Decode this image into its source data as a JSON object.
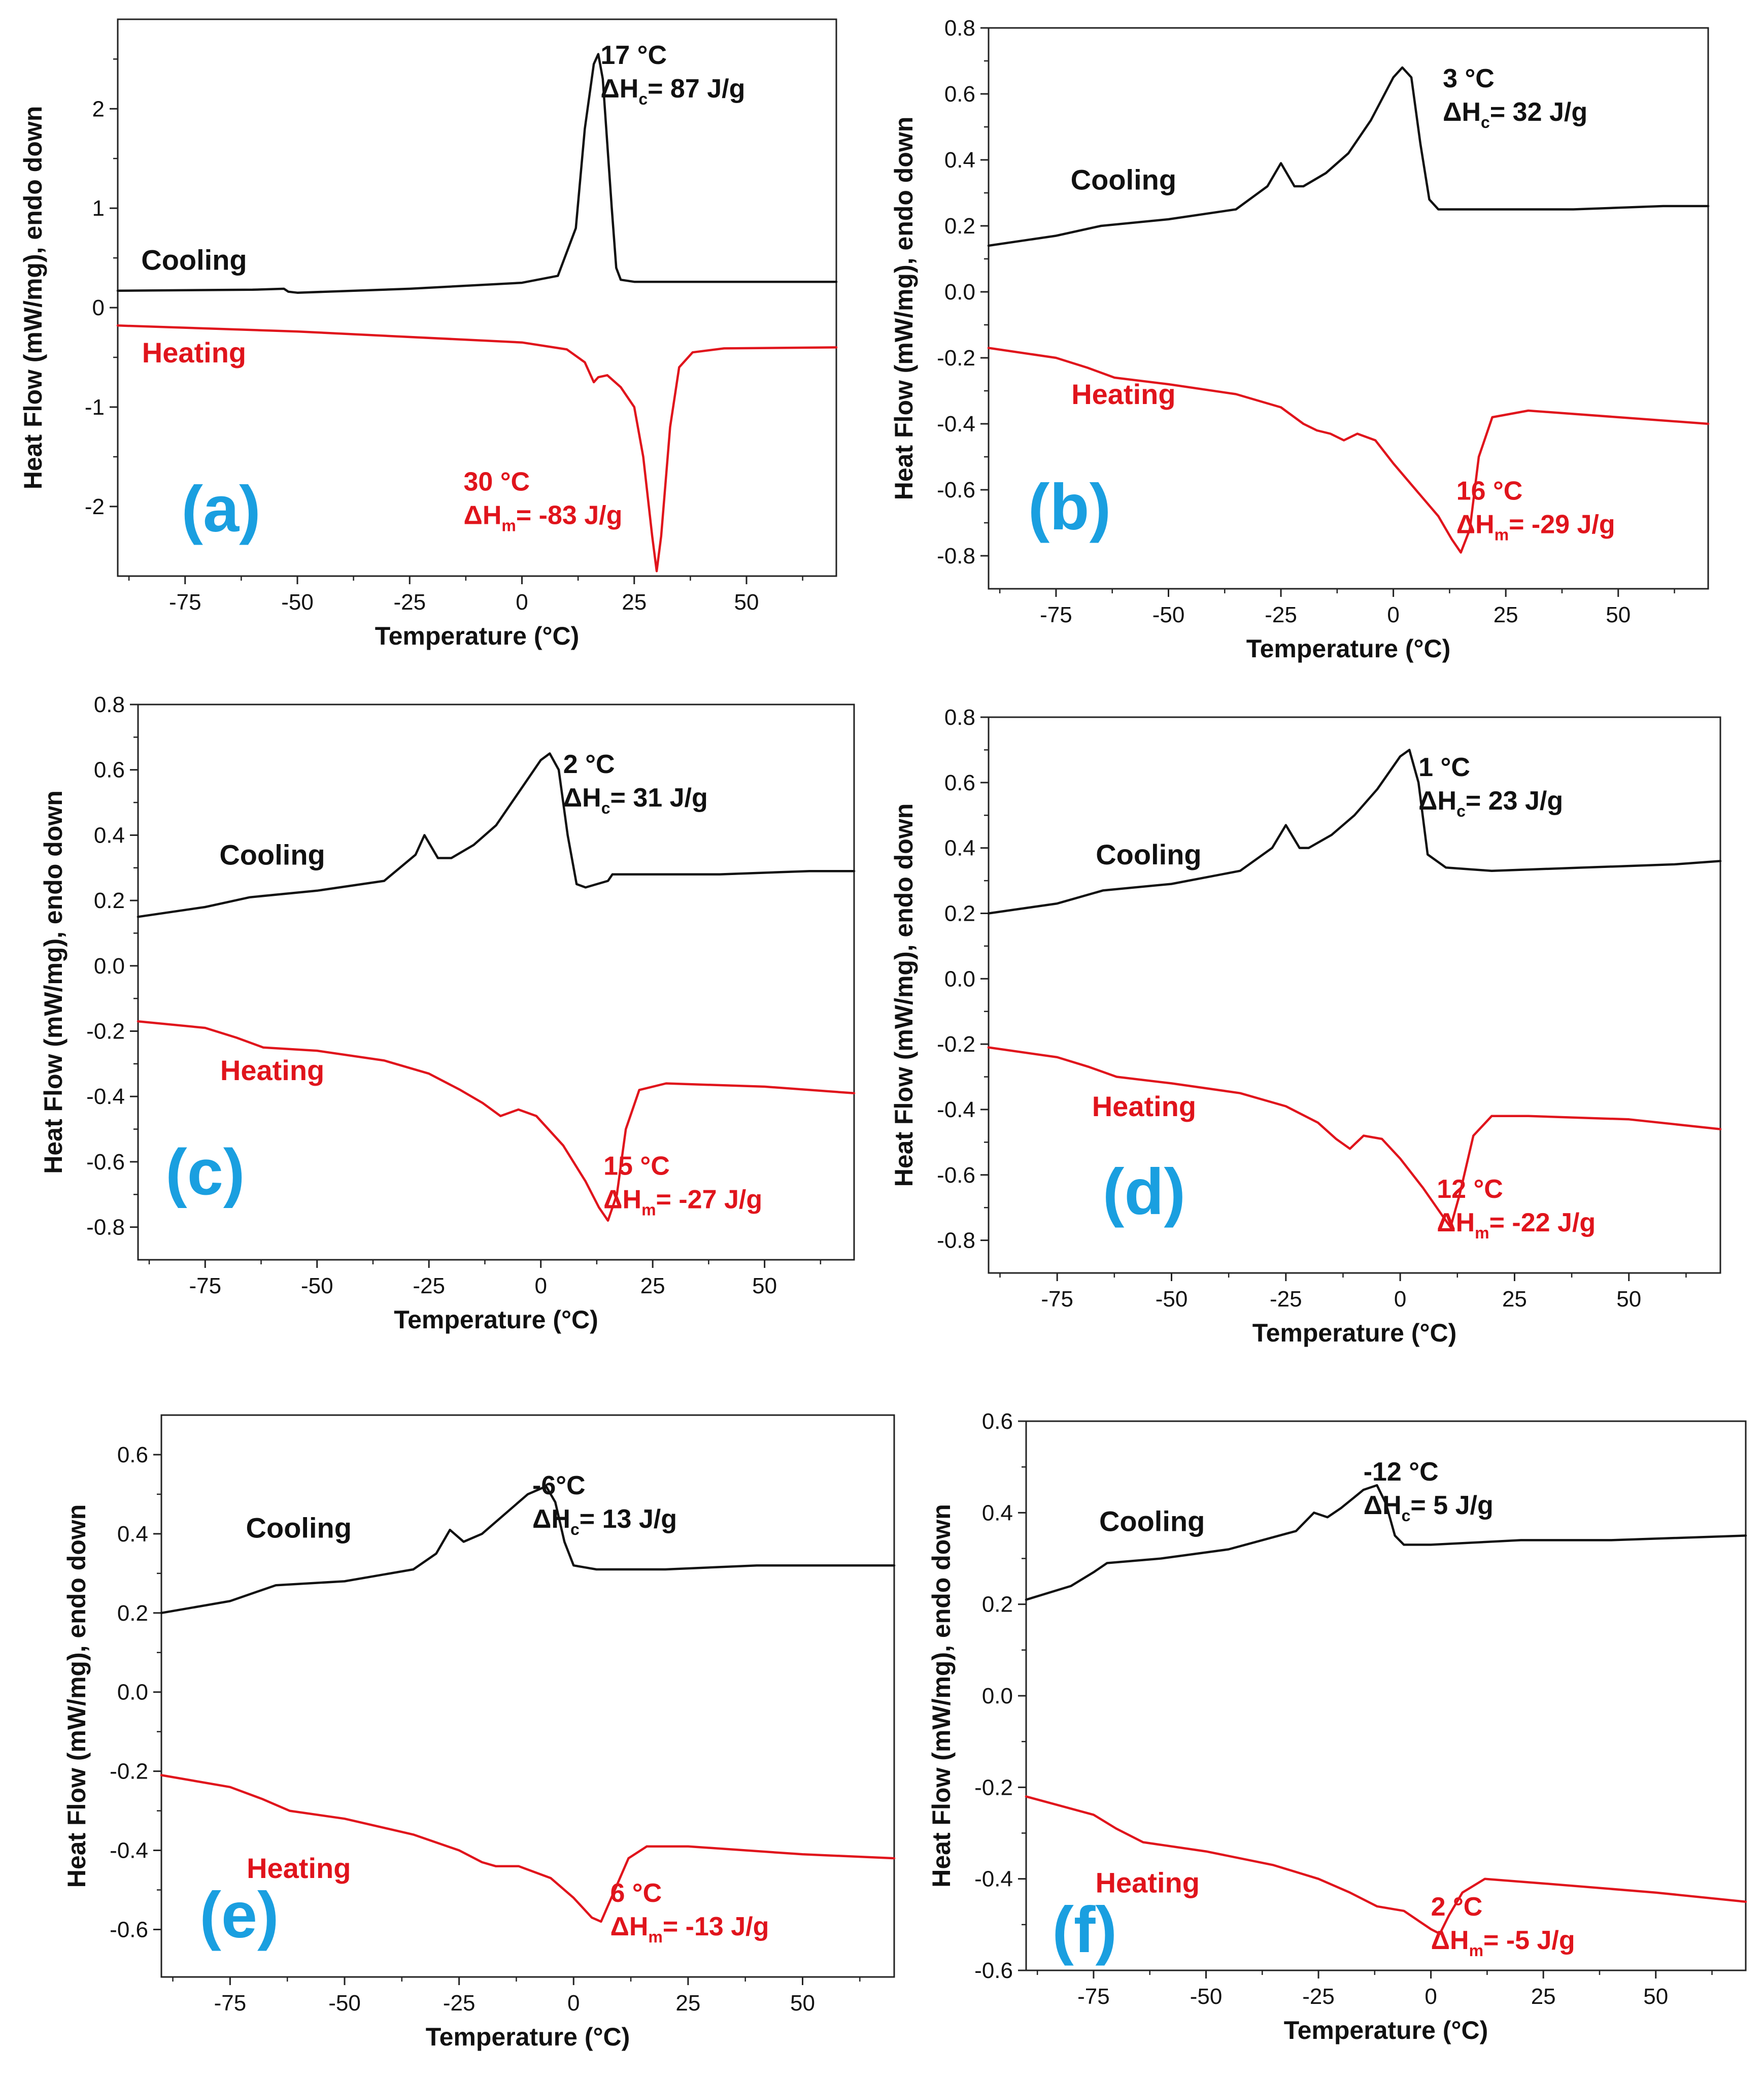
{
  "colors": {
    "cooling": "#111111",
    "heating": "#e0141c",
    "panel_letter": "#1a9fe0",
    "axis": "#222222"
  },
  "chart_data": [
    {
      "panel": "(a)",
      "type": "line",
      "xlabel": "Temperature (°C)",
      "ylabel": "Heat Flow (mW/mg), endo down",
      "xlim": [
        -90,
        70
      ],
      "ylim": [
        -2.7,
        2.9
      ],
      "xticks": [
        -75,
        -50,
        -25,
        0,
        25,
        50
      ],
      "yticks": [
        -2,
        -1,
        0,
        1,
        2
      ],
      "series": [
        {
          "name": "Cooling",
          "x": [
            -90,
            -60,
            -53,
            -52,
            -50,
            -25,
            0,
            8,
            12,
            14,
            16,
            17,
            18,
            20,
            21,
            22,
            25,
            40,
            70
          ],
          "y": [
            0.17,
            0.18,
            0.19,
            0.16,
            0.15,
            0.19,
            0.25,
            0.32,
            0.8,
            1.8,
            2.45,
            2.55,
            2.3,
            1.0,
            0.4,
            0.28,
            0.26,
            0.26,
            0.26
          ]
        },
        {
          "name": "Heating",
          "x": [
            -90,
            -50,
            0,
            10,
            14,
            16,
            17,
            19,
            22,
            25,
            27,
            29,
            30,
            31,
            33,
            35,
            38,
            45,
            70
          ],
          "y": [
            -0.18,
            -0.24,
            -0.35,
            -0.42,
            -0.55,
            -0.75,
            -0.7,
            -0.68,
            -0.8,
            -1.0,
            -1.5,
            -2.3,
            -2.65,
            -2.3,
            -1.2,
            -0.6,
            -0.45,
            -0.41,
            -0.4
          ]
        }
      ],
      "labels": {
        "cooling": "Cooling",
        "heating": "Heating",
        "peak_c": "17 °C",
        "enthalpy_c": "ΔH",
        "enthalpy_c_sub": "c",
        "enthalpy_c_val": "= 87 J/g",
        "peak_m": "30 °C",
        "enthalpy_m": "ΔH",
        "enthalpy_m_sub": "m",
        "enthalpy_m_val": "= -83 J/g",
        "letter": "(a)"
      }
    },
    {
      "panel": "(b)",
      "type": "line",
      "xlabel": "Temperature (°C)",
      "ylabel": "Heat Flow (mW/mg), endo down",
      "xlim": [
        -90,
        70
      ],
      "ylim": [
        -0.9,
        0.8
      ],
      "xticks": [
        -75,
        -50,
        -25,
        0,
        25,
        50
      ],
      "yticks": [
        -0.8,
        -0.6,
        -0.4,
        -0.2,
        0.0,
        0.2,
        0.4,
        0.6,
        0.8
      ],
      "series": [
        {
          "name": "Cooling",
          "x": [
            -90,
            -75,
            -65,
            -50,
            -35,
            -28,
            -25,
            -22,
            -20,
            -15,
            -10,
            -5,
            0,
            2,
            4,
            6,
            8,
            10,
            20,
            40,
            60,
            70
          ],
          "y": [
            0.14,
            0.17,
            0.2,
            0.22,
            0.25,
            0.32,
            0.39,
            0.32,
            0.32,
            0.36,
            0.42,
            0.52,
            0.65,
            0.68,
            0.65,
            0.45,
            0.28,
            0.25,
            0.25,
            0.25,
            0.26,
            0.26
          ]
        },
        {
          "name": "Heating",
          "x": [
            -90,
            -75,
            -68,
            -62,
            -50,
            -35,
            -25,
            -20,
            -17,
            -14,
            -11,
            -8,
            -4,
            0,
            5,
            10,
            13,
            15,
            17,
            19,
            22,
            30,
            50,
            70
          ],
          "y": [
            -0.17,
            -0.2,
            -0.23,
            -0.26,
            -0.28,
            -0.31,
            -0.35,
            -0.4,
            -0.42,
            -0.43,
            -0.45,
            -0.43,
            -0.45,
            -0.52,
            -0.6,
            -0.68,
            -0.75,
            -0.79,
            -0.72,
            -0.5,
            -0.38,
            -0.36,
            -0.38,
            -0.4
          ]
        }
      ],
      "labels": {
        "cooling": "Cooling",
        "heating": "Heating",
        "peak_c": "3 °C",
        "enthalpy_c": "ΔH",
        "enthalpy_c_sub": "c",
        "enthalpy_c_val": "= 32 J/g",
        "peak_m": "16 °C",
        "enthalpy_m": "ΔH",
        "enthalpy_m_sub": "m",
        "enthalpy_m_val": "= -29 J/g",
        "letter": "(b)"
      }
    },
    {
      "panel": "(c)",
      "type": "line",
      "xlabel": "Temperature (°C)",
      "ylabel": "Heat Flow (mW/mg), endo down",
      "xlim": [
        -90,
        70
      ],
      "ylim": [
        -0.9,
        0.8
      ],
      "xticks": [
        -75,
        -50,
        -25,
        0,
        25,
        50
      ],
      "yticks": [
        -0.8,
        -0.6,
        -0.4,
        -0.2,
        0.0,
        0.2,
        0.4,
        0.6,
        0.8
      ],
      "series": [
        {
          "name": "Cooling",
          "x": [
            -90,
            -75,
            -65,
            -50,
            -35,
            -28,
            -26,
            -23,
            -20,
            -15,
            -10,
            -5,
            0,
            2,
            4,
            6,
            8,
            10,
            15,
            16,
            20,
            40,
            60,
            70
          ],
          "y": [
            0.15,
            0.18,
            0.21,
            0.23,
            0.26,
            0.34,
            0.4,
            0.33,
            0.33,
            0.37,
            0.43,
            0.53,
            0.63,
            0.65,
            0.6,
            0.4,
            0.25,
            0.24,
            0.26,
            0.28,
            0.28,
            0.28,
            0.29,
            0.29
          ]
        },
        {
          "name": "Heating",
          "x": [
            -90,
            -75,
            -68,
            -62,
            -50,
            -35,
            -25,
            -18,
            -13,
            -9,
            -5,
            -1,
            5,
            10,
            13,
            15,
            17,
            19,
            22,
            28,
            50,
            70
          ],
          "y": [
            -0.17,
            -0.19,
            -0.22,
            -0.25,
            -0.26,
            -0.29,
            -0.33,
            -0.38,
            -0.42,
            -0.46,
            -0.44,
            -0.46,
            -0.55,
            -0.66,
            -0.74,
            -0.78,
            -0.7,
            -0.5,
            -0.38,
            -0.36,
            -0.37,
            -0.39
          ]
        }
      ],
      "labels": {
        "cooling": "Cooling",
        "heating": "Heating",
        "peak_c": "2 °C",
        "enthalpy_c": "ΔH",
        "enthalpy_c_sub": "c",
        "enthalpy_c_val": "= 31 J/g",
        "peak_m": "15 °C",
        "enthalpy_m": "ΔH",
        "enthalpy_m_sub": "m",
        "enthalpy_m_val": "= -27 J/g",
        "letter": "(c)"
      }
    },
    {
      "panel": "(d)",
      "type": "line",
      "xlabel": "Temperature (°C)",
      "ylabel": "Heat Flow (mW/mg), endo down",
      "xlim": [
        -90,
        70
      ],
      "ylim": [
        -0.9,
        0.8
      ],
      "xticks": [
        -75,
        -50,
        -25,
        0,
        25,
        50
      ],
      "yticks": [
        -0.8,
        -0.6,
        -0.4,
        -0.2,
        0.0,
        0.2,
        0.4,
        0.6,
        0.8
      ],
      "series": [
        {
          "name": "Cooling",
          "x": [
            -90,
            -75,
            -65,
            -50,
            -35,
            -28,
            -25,
            -22,
            -20,
            -15,
            -10,
            -5,
            0,
            2,
            4,
            6,
            10,
            20,
            40,
            60,
            70
          ],
          "y": [
            0.2,
            0.23,
            0.27,
            0.29,
            0.33,
            0.4,
            0.47,
            0.4,
            0.4,
            0.44,
            0.5,
            0.58,
            0.68,
            0.7,
            0.6,
            0.38,
            0.34,
            0.33,
            0.34,
            0.35,
            0.36
          ]
        },
        {
          "name": "Heating",
          "x": [
            -90,
            -75,
            -68,
            -62,
            -50,
            -35,
            -25,
            -18,
            -14,
            -11,
            -8,
            -4,
            0,
            5,
            9,
            11,
            13,
            16,
            20,
            28,
            50,
            70
          ],
          "y": [
            -0.21,
            -0.24,
            -0.27,
            -0.3,
            -0.32,
            -0.35,
            -0.39,
            -0.44,
            -0.49,
            -0.52,
            -0.48,
            -0.49,
            -0.55,
            -0.64,
            -0.72,
            -0.76,
            -0.66,
            -0.48,
            -0.42,
            -0.42,
            -0.43,
            -0.46
          ]
        }
      ],
      "labels": {
        "cooling": "Cooling",
        "heating": "Heating",
        "peak_c": "1 °C",
        "enthalpy_c": "ΔH",
        "enthalpy_c_sub": "c",
        "enthalpy_c_val": "= 23 J/g",
        "peak_m": "12 °C",
        "enthalpy_m": "ΔH",
        "enthalpy_m_sub": "m",
        "enthalpy_m_val": "= -22 J/g",
        "letter": "(d)"
      }
    },
    {
      "panel": "(e)",
      "type": "line",
      "xlabel": "Temperature (°C)",
      "ylabel": "Heat Flow (mW/mg), endo down",
      "xlim": [
        -90,
        70
      ],
      "ylim": [
        -0.72,
        0.7
      ],
      "xticks": [
        -75,
        -50,
        -25,
        0,
        25,
        50
      ],
      "yticks": [
        -0.6,
        -0.4,
        -0.2,
        0.0,
        0.2,
        0.4,
        0.6
      ],
      "series": [
        {
          "name": "Cooling",
          "x": [
            -90,
            -75,
            -65,
            -50,
            -35,
            -30,
            -27,
            -24,
            -20,
            -15,
            -10,
            -6,
            -4,
            -2,
            0,
            5,
            20,
            40,
            70
          ],
          "y": [
            0.2,
            0.23,
            0.27,
            0.28,
            0.31,
            0.35,
            0.41,
            0.38,
            0.4,
            0.45,
            0.5,
            0.52,
            0.48,
            0.38,
            0.32,
            0.31,
            0.31,
            0.32,
            0.32
          ]
        },
        {
          "name": "Heating",
          "x": [
            -90,
            -75,
            -68,
            -62,
            -50,
            -35,
            -25,
            -20,
            -17,
            -12,
            -5,
            0,
            4,
            6,
            9,
            12,
            16,
            25,
            50,
            70
          ],
          "y": [
            -0.21,
            -0.24,
            -0.27,
            -0.3,
            -0.32,
            -0.36,
            -0.4,
            -0.43,
            -0.44,
            -0.44,
            -0.47,
            -0.52,
            -0.57,
            -0.58,
            -0.5,
            -0.42,
            -0.39,
            -0.39,
            -0.41,
            -0.42
          ]
        }
      ],
      "labels": {
        "cooling": "Cooling",
        "heating": "Heating",
        "peak_c": "-6°C",
        "enthalpy_c": "ΔH",
        "enthalpy_c_sub": "c",
        "enthalpy_c_val": "= 13 J/g",
        "peak_m": "6 °C",
        "enthalpy_m": "ΔH",
        "enthalpy_m_sub": "m",
        "enthalpy_m_val": "= -13 J/g",
        "letter": "(e)"
      }
    },
    {
      "panel": "(f)",
      "type": "line",
      "xlabel": "Temperature (°C)",
      "ylabel": "Heat Flow (mW/mg), endo down",
      "xlim": [
        -90,
        70
      ],
      "ylim": [
        -0.6,
        0.6
      ],
      "xticks": [
        -75,
        -50,
        -25,
        0,
        25,
        50
      ],
      "yticks": [
        -0.6,
        -0.4,
        -0.2,
        0.0,
        0.2,
        0.4,
        0.6
      ],
      "series": [
        {
          "name": "Cooling",
          "x": [
            -90,
            -80,
            -75,
            -72,
            -60,
            -45,
            -30,
            -26,
            -23,
            -20,
            -15,
            -12,
            -10,
            -8,
            -6,
            0,
            20,
            40,
            70
          ],
          "y": [
            0.21,
            0.24,
            0.27,
            0.29,
            0.3,
            0.32,
            0.36,
            0.4,
            0.39,
            0.41,
            0.45,
            0.46,
            0.42,
            0.35,
            0.33,
            0.33,
            0.34,
            0.34,
            0.35
          ]
        },
        {
          "name": "Heating",
          "x": [
            -90,
            -75,
            -70,
            -64,
            -50,
            -35,
            -25,
            -18,
            -12,
            -6,
            0,
            2,
            4,
            7,
            12,
            25,
            50,
            70
          ],
          "y": [
            -0.22,
            -0.26,
            -0.29,
            -0.32,
            -0.34,
            -0.37,
            -0.4,
            -0.43,
            -0.46,
            -0.47,
            -0.51,
            -0.52,
            -0.48,
            -0.43,
            -0.4,
            -0.41,
            -0.43,
            -0.45
          ]
        }
      ],
      "labels": {
        "cooling": "Cooling",
        "heating": "Heating",
        "peak_c": "-12 °C",
        "enthalpy_c": "ΔH",
        "enthalpy_c_sub": "c",
        "enthalpy_c_val": "= 5 J/g",
        "peak_m": "2 °C",
        "enthalpy_m": "ΔH",
        "enthalpy_m_sub": "m",
        "enthalpy_m_val": "= -5 J/g",
        "letter": "(f)"
      }
    }
  ]
}
